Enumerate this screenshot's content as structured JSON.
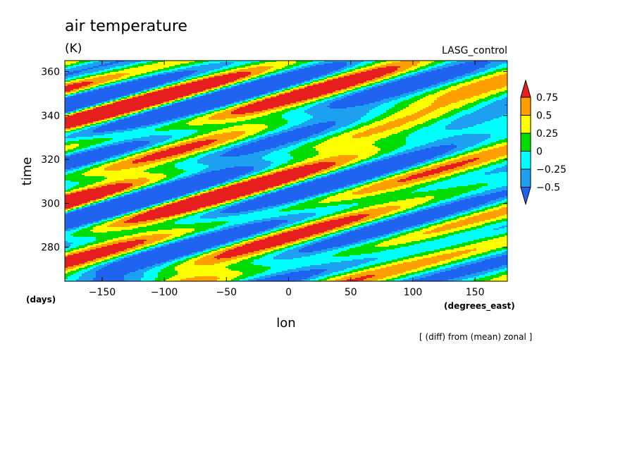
{
  "chart_data": {
    "type": "heatmap",
    "title": "air temperature",
    "units": "(K)",
    "run_label": "LASG_control",
    "xlabel": "lon",
    "ylabel": "time",
    "x_unit_note": "(degrees_east)",
    "y_unit_note": "(days)",
    "footnote": "[ (diff) from (mean) zonal ]",
    "xlim": [
      -180,
      176
    ],
    "ylim": [
      264.5,
      365
    ],
    "x_ticks": [
      {
        "value": -150,
        "label": "−150"
      },
      {
        "value": -100,
        "label": "−100"
      },
      {
        "value": -50,
        "label": "−50"
      },
      {
        "value": 0,
        "label": "0"
      },
      {
        "value": 50,
        "label": "50"
      },
      {
        "value": 100,
        "label": "100"
      },
      {
        "value": 150,
        "label": "150"
      }
    ],
    "y_ticks": [
      {
        "value": 280,
        "label": "280"
      },
      {
        "value": 300,
        "label": "300"
      },
      {
        "value": 320,
        "label": "320"
      },
      {
        "value": 340,
        "label": "340"
      },
      {
        "value": 360,
        "label": "360"
      }
    ],
    "colorbar": {
      "levels": [
        {
          "value": 0.75,
          "label": "0.75"
        },
        {
          "value": 0.5,
          "label": "0.5"
        },
        {
          "value": 0.25,
          "label": "0.25"
        },
        {
          "value": 0,
          "label": "0"
        },
        {
          "value": -0.25,
          "label": "−0.25"
        },
        {
          "value": -0.5,
          "label": "−0.5"
        }
      ],
      "colors": [
        "#1e64f0",
        "#1ea0f0",
        "#00ffff",
        "#00dc00",
        "#ffff00",
        "#ffa000",
        "#e61e1e"
      ]
    },
    "grid": false
  }
}
